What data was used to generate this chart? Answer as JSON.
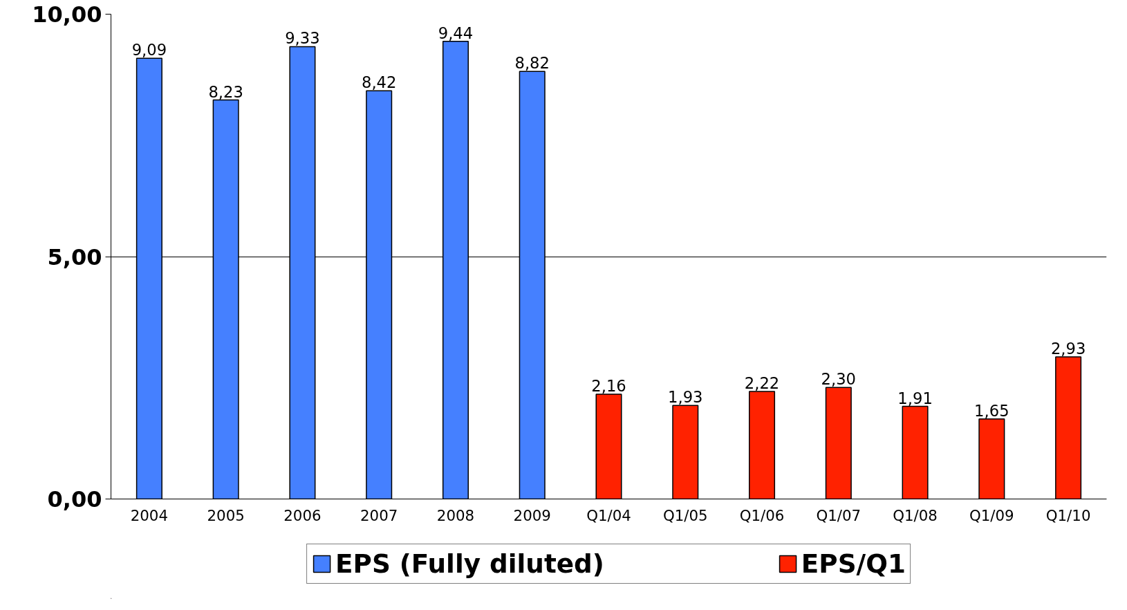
{
  "chart_data": {
    "type": "bar",
    "categories": [
      "2004",
      "2005",
      "2006",
      "2007",
      "2008",
      "2009",
      "Q1/04",
      "Q1/05",
      "Q1/06",
      "Q1/07",
      "Q1/08",
      "Q1/09",
      "Q1/10"
    ],
    "series": [
      {
        "name": "EPS (Fully diluted)",
        "color": "#4580ff",
        "values": [
          9.09,
          8.23,
          9.33,
          8.42,
          9.44,
          8.82,
          null,
          null,
          null,
          null,
          null,
          null,
          null
        ],
        "value_labels": [
          "9,09",
          "8,23",
          "9,33",
          "8,42",
          "9,44",
          "8,82",
          null,
          null,
          null,
          null,
          null,
          null,
          null
        ]
      },
      {
        "name": "EPS/Q1",
        "color": "#ff2200",
        "values": [
          null,
          null,
          null,
          null,
          null,
          null,
          2.16,
          1.93,
          2.22,
          2.3,
          1.91,
          1.65,
          2.93
        ],
        "value_labels": [
          null,
          null,
          null,
          null,
          null,
          null,
          "2,16",
          "1,93",
          "2,22",
          "2,30",
          "1,91",
          "1,65",
          "2,93"
        ]
      }
    ],
    "ylim": [
      0,
      10
    ],
    "yticks": [
      {
        "value": 0,
        "label": "0,00"
      },
      {
        "value": 5,
        "label": "5,00"
      },
      {
        "value": 10,
        "label": "10,00"
      }
    ],
    "grid": "y",
    "legend": "bottom"
  }
}
